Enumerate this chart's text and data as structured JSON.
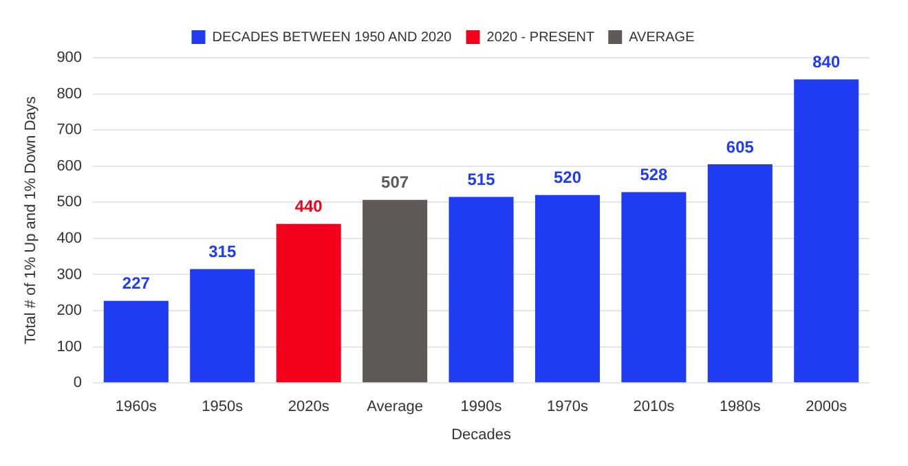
{
  "chart_data": {
    "type": "bar",
    "xlabel": "Decades",
    "ylabel": "Total # of 1% Up and 1% Down Days",
    "categories": [
      "1960s",
      "1950s",
      "2020s",
      "Average",
      "1990s",
      "1970s",
      "2010s",
      "1980s",
      "2000s"
    ],
    "series": [
      {
        "name": "DECADES BETWEEN 1950 AND 2020",
        "color": "#1f3cf2",
        "values": [
          227,
          315,
          null,
          null,
          515,
          520,
          528,
          605,
          840
        ]
      },
      {
        "name": "2020 - PRESENT",
        "color": "#f2001c",
        "values": [
          null,
          null,
          440,
          null,
          null,
          null,
          null,
          null,
          null
        ]
      },
      {
        "name": "AVERAGE",
        "color": "#5f5a58",
        "values": [
          null,
          null,
          null,
          507,
          null,
          null,
          null,
          null,
          null
        ]
      }
    ],
    "ylim": [
      0,
      900
    ],
    "yticks": [
      0,
      100,
      200,
      300,
      400,
      500,
      600,
      700,
      800,
      900
    ],
    "grid": "y",
    "legend": "top",
    "data_labels": true
  }
}
